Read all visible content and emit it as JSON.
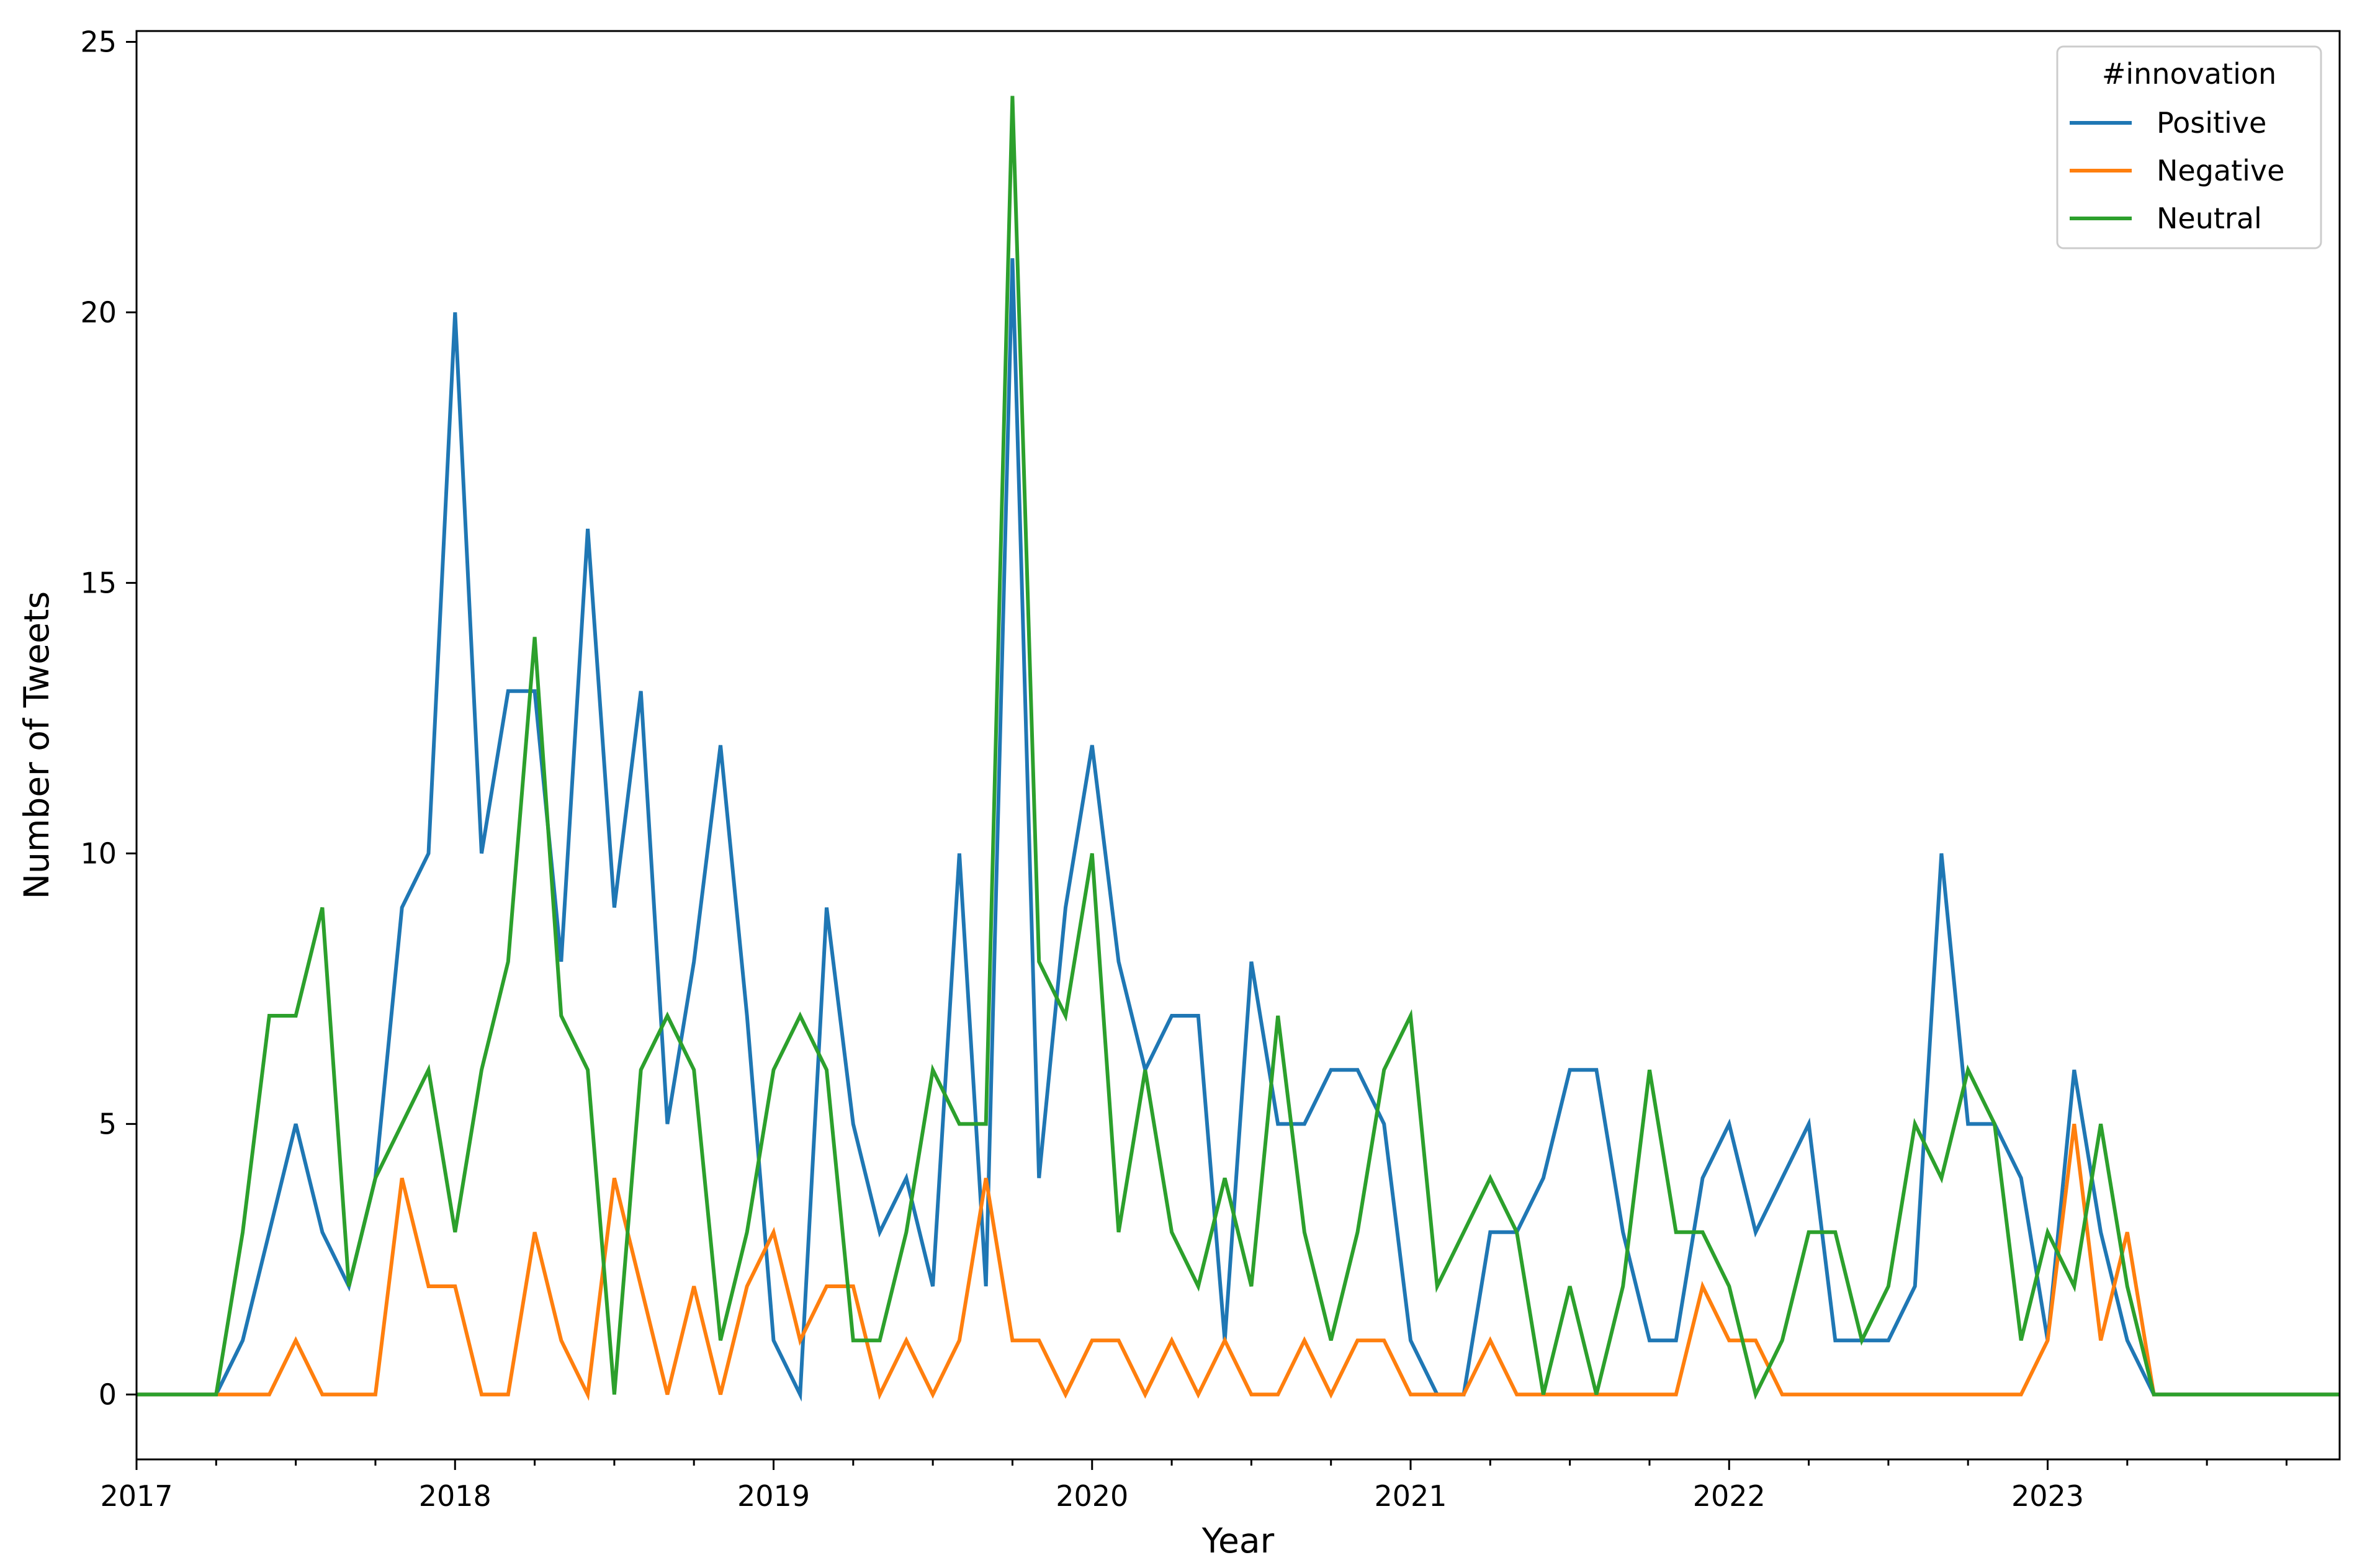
{
  "chart_data": {
    "type": "line",
    "title": "",
    "xlabel": "Year",
    "ylabel": "Number of Tweets",
    "xlim": [
      "2017-01",
      "2023-12"
    ],
    "ylim": [
      -1.2,
      25.2
    ],
    "x_ticks": [
      "2017",
      "2018",
      "2019",
      "2020",
      "2021",
      "2022",
      "2023"
    ],
    "y_ticks": [
      "0",
      "5",
      "10",
      "15",
      "20",
      "25"
    ],
    "grid": false,
    "legend": {
      "title": "#innovation",
      "position": "top-right"
    },
    "x_start": "2017-01",
    "x": [
      "2017-01",
      "2017-02",
      "2017-03",
      "2017-04",
      "2017-05",
      "2017-06",
      "2017-07",
      "2017-08",
      "2017-09",
      "2017-10",
      "2017-11",
      "2017-12",
      "2018-01",
      "2018-02",
      "2018-03",
      "2018-04",
      "2018-05",
      "2018-06",
      "2018-07",
      "2018-08",
      "2018-09",
      "2018-10",
      "2018-11",
      "2018-12",
      "2019-01",
      "2019-02",
      "2019-03",
      "2019-04",
      "2019-05",
      "2019-06",
      "2019-07",
      "2019-08",
      "2019-09",
      "2019-10",
      "2019-11",
      "2019-12",
      "2020-01",
      "2020-02",
      "2020-03",
      "2020-04",
      "2020-05",
      "2020-06",
      "2020-07",
      "2020-08",
      "2020-09",
      "2020-10",
      "2020-11",
      "2020-12",
      "2021-01",
      "2021-02",
      "2021-03",
      "2021-04",
      "2021-05",
      "2021-06",
      "2021-07",
      "2021-08",
      "2021-09",
      "2021-10",
      "2021-11",
      "2021-12",
      "2022-01",
      "2022-02",
      "2022-03",
      "2022-04",
      "2022-05",
      "2022-06",
      "2022-07",
      "2022-08",
      "2022-09",
      "2022-10",
      "2022-11",
      "2022-12",
      "2023-01",
      "2023-02",
      "2023-03",
      "2023-04",
      "2023-05",
      "2023-06",
      "2023-07",
      "2023-08",
      "2023-09",
      "2023-10",
      "2023-11",
      "2023-12"
    ],
    "series": [
      {
        "name": "Positive",
        "color": "#1f77b4",
        "values": [
          0,
          0,
          0,
          0,
          1,
          3,
          5,
          3,
          2,
          4,
          9,
          10,
          20,
          10,
          13,
          13,
          8,
          16,
          9,
          13,
          5,
          8,
          12,
          7,
          1,
          0,
          9,
          5,
          3,
          4,
          2,
          10,
          2,
          21,
          4,
          9,
          12,
          8,
          6,
          7,
          7,
          1,
          8,
          5,
          5,
          6,
          6,
          5,
          1,
          0,
          0,
          3,
          3,
          4,
          6,
          6,
          3,
          1,
          1,
          4,
          5,
          3,
          4,
          5,
          1,
          1,
          1,
          2,
          10,
          5,
          5,
          4,
          1,
          6,
          3,
          1,
          0,
          0,
          0,
          0,
          0,
          0,
          0,
          0
        ]
      },
      {
        "name": "Negative",
        "color": "#ff7f0e",
        "values": [
          0,
          0,
          0,
          0,
          0,
          0,
          1,
          0,
          0,
          0,
          4,
          2,
          2,
          0,
          0,
          3,
          1,
          0,
          4,
          2,
          0,
          2,
          0,
          2,
          3,
          1,
          2,
          2,
          0,
          1,
          0,
          1,
          4,
          1,
          1,
          0,
          1,
          1,
          0,
          1,
          0,
          1,
          0,
          0,
          1,
          0,
          1,
          1,
          0,
          0,
          0,
          1,
          0,
          0,
          0,
          0,
          0,
          0,
          0,
          2,
          1,
          1,
          0,
          0,
          0,
          0,
          0,
          0,
          0,
          0,
          0,
          0,
          1,
          5,
          1,
          3,
          0,
          0,
          0,
          0,
          0,
          0,
          0,
          0
        ]
      },
      {
        "name": "Neutral",
        "color": "#2ca02c",
        "values": [
          0,
          0,
          0,
          0,
          3,
          7,
          7,
          9,
          2,
          4,
          5,
          6,
          3,
          6,
          8,
          14,
          7,
          6,
          0,
          6,
          7,
          6,
          1,
          3,
          6,
          7,
          6,
          1,
          1,
          3,
          6,
          5,
          5,
          24,
          8,
          7,
          10,
          3,
          6,
          3,
          2,
          4,
          2,
          7,
          3,
          1,
          3,
          6,
          7,
          2,
          3,
          4,
          3,
          0,
          2,
          0,
          2,
          6,
          3,
          3,
          2,
          0,
          1,
          3,
          3,
          1,
          2,
          5,
          4,
          6,
          5,
          1,
          3,
          2,
          5,
          2,
          0,
          0,
          0,
          0,
          0,
          0,
          0,
          0
        ]
      }
    ]
  }
}
